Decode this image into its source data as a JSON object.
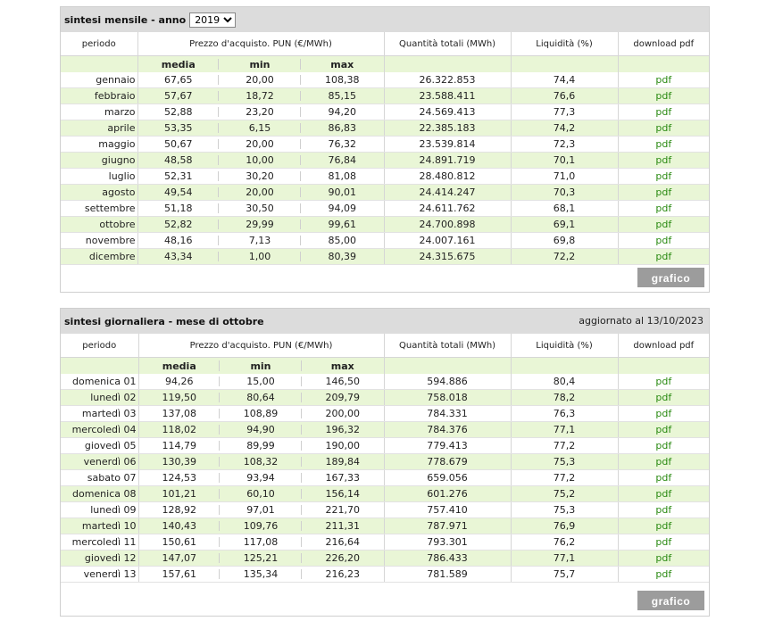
{
  "monthly": {
    "title": "sintesi mensile - anno",
    "year_selected": "2019",
    "year_options": [
      "2019"
    ],
    "headers": {
      "period": "periodo",
      "price": "Prezzo d'acquisto. PUN (€/MWh)",
      "quantity": "Quantità totali (MWh)",
      "liquidity": "Liquidità (%)",
      "download": "download pdf"
    },
    "sub_headers": {
      "media": "media",
      "min": "min",
      "max": "max"
    },
    "rows": [
      {
        "period": "gennaio",
        "media": "67,65",
        "min": "20,00",
        "max": "108,38",
        "qty": "26.322.853",
        "liq": "74,4",
        "pdf": "pdf"
      },
      {
        "period": "febbraio",
        "media": "57,67",
        "min": "18,72",
        "max": "85,15",
        "qty": "23.588.411",
        "liq": "76,6",
        "pdf": "pdf"
      },
      {
        "period": "marzo",
        "media": "52,88",
        "min": "23,20",
        "max": "94,20",
        "qty": "24.569.413",
        "liq": "77,3",
        "pdf": "pdf"
      },
      {
        "period": "aprile",
        "media": "53,35",
        "min": "6,15",
        "max": "86,83",
        "qty": "22.385.183",
        "liq": "74,2",
        "pdf": "pdf"
      },
      {
        "period": "maggio",
        "media": "50,67",
        "min": "20,00",
        "max": "76,32",
        "qty": "23.539.814",
        "liq": "72,3",
        "pdf": "pdf"
      },
      {
        "period": "giugno",
        "media": "48,58",
        "min": "10,00",
        "max": "76,84",
        "qty": "24.891.719",
        "liq": "70,1",
        "pdf": "pdf"
      },
      {
        "period": "luglio",
        "media": "52,31",
        "min": "30,20",
        "max": "81,08",
        "qty": "28.480.812",
        "liq": "71,0",
        "pdf": "pdf"
      },
      {
        "period": "agosto",
        "media": "49,54",
        "min": "20,00",
        "max": "90,01",
        "qty": "24.414.247",
        "liq": "70,3",
        "pdf": "pdf"
      },
      {
        "period": "settembre",
        "media": "51,18",
        "min": "30,50",
        "max": "94,09",
        "qty": "24.611.762",
        "liq": "68,1",
        "pdf": "pdf"
      },
      {
        "period": "ottobre",
        "media": "52,82",
        "min": "29,99",
        "max": "99,61",
        "qty": "24.700.898",
        "liq": "69,1",
        "pdf": "pdf"
      },
      {
        "period": "novembre",
        "media": "48,16",
        "min": "7,13",
        "max": "85,00",
        "qty": "24.007.161",
        "liq": "69,8",
        "pdf": "pdf"
      },
      {
        "period": "dicembre",
        "media": "43,34",
        "min": "1,00",
        "max": "80,39",
        "qty": "24.315.675",
        "liq": "72,2",
        "pdf": "pdf"
      }
    ],
    "grafico_label": "grafico"
  },
  "daily": {
    "title": "sintesi giornaliera - mese di ottobre",
    "updated": "aggiornato al 13/10/2023",
    "headers": {
      "period": "periodo",
      "price": "Prezzo d'acquisto. PUN (€/MWh)",
      "quantity": "Quantità totali (MWh)",
      "liquidity": "Liquidità (%)",
      "download": "download pdf"
    },
    "sub_headers": {
      "media": "media",
      "min": "min",
      "max": "max"
    },
    "rows": [
      {
        "period": "domenica 01",
        "media": "94,26",
        "min": "15,00",
        "max": "146,50",
        "qty": "594.886",
        "liq": "80,4",
        "pdf": "pdf"
      },
      {
        "period": "lunedì 02",
        "media": "119,50",
        "min": "80,64",
        "max": "209,79",
        "qty": "758.018",
        "liq": "78,2",
        "pdf": "pdf"
      },
      {
        "period": "martedì 03",
        "media": "137,08",
        "min": "108,89",
        "max": "200,00",
        "qty": "784.331",
        "liq": "76,3",
        "pdf": "pdf"
      },
      {
        "period": "mercoledì 04",
        "media": "118,02",
        "min": "94,90",
        "max": "196,32",
        "qty": "784.376",
        "liq": "77,1",
        "pdf": "pdf"
      },
      {
        "period": "giovedì 05",
        "media": "114,79",
        "min": "89,99",
        "max": "190,00",
        "qty": "779.413",
        "liq": "77,2",
        "pdf": "pdf"
      },
      {
        "period": "venerdì 06",
        "media": "130,39",
        "min": "108,32",
        "max": "189,84",
        "qty": "778.679",
        "liq": "75,3",
        "pdf": "pdf"
      },
      {
        "period": "sabato 07",
        "media": "124,53",
        "min": "93,94",
        "max": "167,33",
        "qty": "659.056",
        "liq": "77,2",
        "pdf": "pdf"
      },
      {
        "period": "domenica 08",
        "media": "101,21",
        "min": "60,10",
        "max": "156,14",
        "qty": "601.276",
        "liq": "75,2",
        "pdf": "pdf"
      },
      {
        "period": "lunedì 09",
        "media": "128,92",
        "min": "97,01",
        "max": "221,70",
        "qty": "757.410",
        "liq": "75,3",
        "pdf": "pdf"
      },
      {
        "period": "martedì 10",
        "media": "140,43",
        "min": "109,76",
        "max": "211,31",
        "qty": "787.971",
        "liq": "76,9",
        "pdf": "pdf"
      },
      {
        "period": "mercoledì 11",
        "media": "150,61",
        "min": "117,08",
        "max": "216,64",
        "qty": "793.301",
        "liq": "76,2",
        "pdf": "pdf"
      },
      {
        "period": "giovedì 12",
        "media": "147,07",
        "min": "125,21",
        "max": "226,20",
        "qty": "786.433",
        "liq": "77,1",
        "pdf": "pdf"
      },
      {
        "period": "venerdì 13",
        "media": "157,61",
        "min": "135,34",
        "max": "216,23",
        "qty": "781.589",
        "liq": "75,7",
        "pdf": "pdf"
      }
    ],
    "grafico_label": "grafico"
  },
  "colors": {
    "alt_row": "#e9f6d6",
    "header_bg": "#dcdcdc",
    "pdf_link": "#2a8a12",
    "button_bg": "#9c9c9c"
  }
}
